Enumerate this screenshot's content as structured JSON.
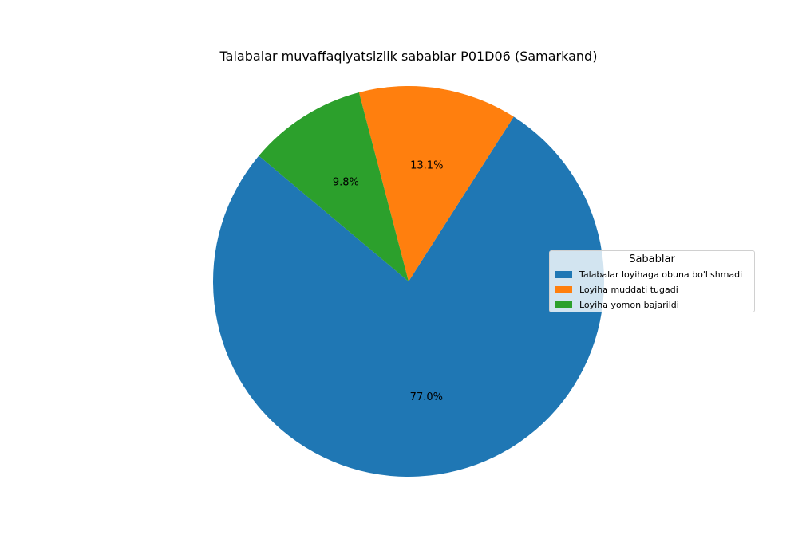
{
  "chart_data": {
    "type": "pie",
    "title": "Talabalar muvaffaqiyatsizlik sabablar P01D06 (Samarkand)",
    "slices": [
      {
        "label": "Talabalar loyihaga obuna bo'lishmadi",
        "value": 77.0,
        "pct_label": "77.0%",
        "color": "#1f77b4"
      },
      {
        "label": "Loyiha muddati tugadi",
        "value": 13.1,
        "pct_label": "13.1%",
        "color": "#ff7f0e"
      },
      {
        "label": "Loyiha yomon bajarildi",
        "value": 9.8,
        "pct_label": "9.8%",
        "color": "#2ca02c"
      }
    ],
    "start_angle_deg": 140,
    "counterclock": true,
    "legend": {
      "title": "Sabablar",
      "placement": "center-right"
    }
  }
}
